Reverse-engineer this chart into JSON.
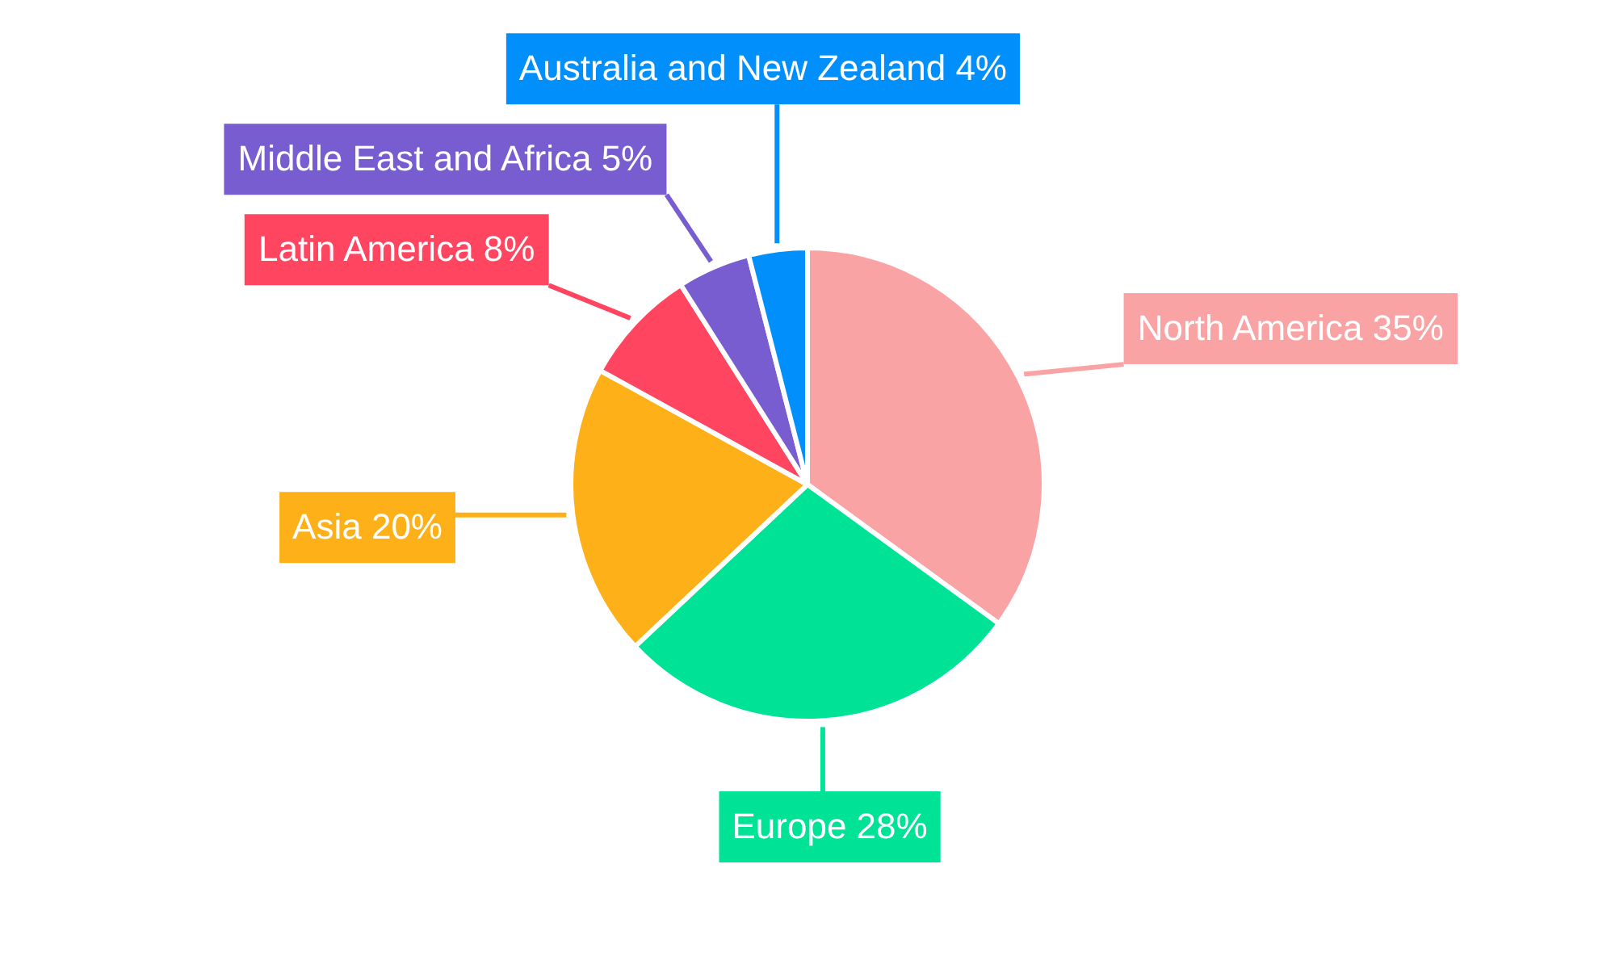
{
  "chart_data": {
    "type": "pie",
    "categories": [
      "North America",
      "Europe",
      "Asia",
      "Latin America",
      "Middle East and Africa",
      "Australia and New Zealand"
    ],
    "values": [
      35,
      28,
      20,
      8,
      5,
      4
    ],
    "value_labels": [
      "35%",
      "28%",
      "20%",
      "8%",
      "5%",
      "4%"
    ],
    "colors": [
      "#f9a3a4",
      "#00e396",
      "#feb019",
      "#ff4560",
      "#775dd0",
      "#008ffb"
    ],
    "legend": false
  }
}
